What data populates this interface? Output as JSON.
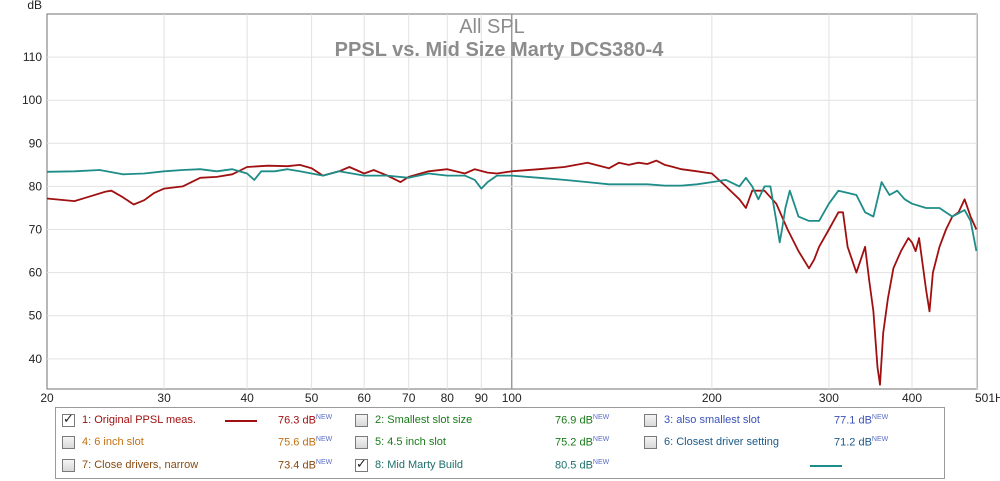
{
  "chart_data": {
    "type": "line",
    "title": "All SPL",
    "subtitle": "PPSL vs. Mid Size Marty DCS380-4",
    "ylabel": "dB",
    "xunit": "Hz",
    "xscale": "log",
    "xlim": [
      20,
      501
    ],
    "ylim": [
      33,
      120
    ],
    "grid": true,
    "x_ticks": [
      20,
      30,
      40,
      50,
      60,
      70,
      80,
      90,
      100,
      200,
      300,
      400
    ],
    "x_tick_labels": [
      "20",
      "30",
      "40",
      "50",
      "60",
      "70",
      "80",
      "90",
      "100",
      "200",
      "300",
      "400",
      "501Hz"
    ],
    "y_ticks": [
      40,
      50,
      60,
      70,
      80,
      90,
      100,
      110
    ],
    "y_top_label": "dB",
    "series": [
      {
        "name": "1: Original PPSL meas.",
        "color": "#a01010",
        "points": [
          [
            20,
            77.2
          ],
          [
            22,
            76.6
          ],
          [
            23,
            77.5
          ],
          [
            24.5,
            78.8
          ],
          [
            25,
            79
          ],
          [
            26,
            77.5
          ],
          [
            27,
            75.8
          ],
          [
            28,
            76.8
          ],
          [
            29,
            78.5
          ],
          [
            30,
            79.5
          ],
          [
            32,
            80
          ],
          [
            34,
            82
          ],
          [
            36,
            82.2
          ],
          [
            38,
            82.8
          ],
          [
            40,
            84.5
          ],
          [
            43,
            84.8
          ],
          [
            46,
            84.7
          ],
          [
            48,
            85
          ],
          [
            50,
            84.2
          ],
          [
            52,
            82.5
          ],
          [
            55,
            83.5
          ],
          [
            57,
            84.5
          ],
          [
            60,
            83
          ],
          [
            62,
            83.8
          ],
          [
            65,
            82.5
          ],
          [
            68,
            81
          ],
          [
            70,
            82.2
          ],
          [
            75,
            83.5
          ],
          [
            80,
            84
          ],
          [
            85,
            83
          ],
          [
            88,
            84
          ],
          [
            92,
            83.2
          ],
          [
            95,
            83
          ],
          [
            100,
            83.5
          ],
          [
            110,
            84
          ],
          [
            120,
            84.5
          ],
          [
            130,
            85.5
          ],
          [
            140,
            84.2
          ],
          [
            145,
            85.5
          ],
          [
            150,
            85
          ],
          [
            155,
            85.5
          ],
          [
            160,
            85.2
          ],
          [
            165,
            86
          ],
          [
            170,
            85
          ],
          [
            175,
            84.5
          ],
          [
            180,
            84
          ],
          [
            190,
            83.5
          ],
          [
            200,
            83
          ],
          [
            210,
            80
          ],
          [
            220,
            77
          ],
          [
            225,
            75
          ],
          [
            230,
            79
          ],
          [
            240,
            79
          ],
          [
            250,
            76
          ],
          [
            260,
            70
          ],
          [
            270,
            65
          ],
          [
            280,
            61
          ],
          [
            285,
            63
          ],
          [
            290,
            66
          ],
          [
            300,
            70
          ],
          [
            310,
            74
          ],
          [
            315,
            74
          ],
          [
            320,
            66
          ],
          [
            330,
            60
          ],
          [
            340,
            66
          ],
          [
            345,
            58
          ],
          [
            350,
            51
          ],
          [
            355,
            38
          ],
          [
            358,
            34
          ],
          [
            362,
            46
          ],
          [
            368,
            54
          ],
          [
            375,
            61
          ],
          [
            385,
            65
          ],
          [
            395,
            68
          ],
          [
            400,
            67
          ],
          [
            405,
            65
          ],
          [
            410,
            68
          ],
          [
            420,
            56
          ],
          [
            425,
            51
          ],
          [
            430,
            60
          ],
          [
            440,
            66
          ],
          [
            450,
            70
          ],
          [
            460,
            73
          ],
          [
            470,
            74
          ],
          [
            480,
            77
          ],
          [
            490,
            73
          ],
          [
            500,
            70
          ]
        ]
      },
      {
        "name": "8: Mid Marty Build",
        "color": "#1e8c88",
        "points": [
          [
            20,
            83.4
          ],
          [
            22,
            83.5
          ],
          [
            24,
            83.8
          ],
          [
            26,
            82.8
          ],
          [
            28,
            83
          ],
          [
            30,
            83.5
          ],
          [
            32,
            83.8
          ],
          [
            34,
            84
          ],
          [
            36,
            83.5
          ],
          [
            38,
            84
          ],
          [
            40,
            83
          ],
          [
            41,
            81.5
          ],
          [
            42,
            83.5
          ],
          [
            44,
            83.5
          ],
          [
            46,
            84
          ],
          [
            48,
            83.5
          ],
          [
            50,
            83
          ],
          [
            52,
            82.5
          ],
          [
            55,
            83.5
          ],
          [
            60,
            82.5
          ],
          [
            65,
            82.5
          ],
          [
            70,
            82
          ],
          [
            75,
            83
          ],
          [
            80,
            82.5
          ],
          [
            85,
            82.5
          ],
          [
            88,
            81.5
          ],
          [
            90,
            79.5
          ],
          [
            92,
            81
          ],
          [
            95,
            82.5
          ],
          [
            100,
            82.5
          ],
          [
            110,
            82
          ],
          [
            120,
            81.5
          ],
          [
            130,
            81
          ],
          [
            140,
            80.5
          ],
          [
            150,
            80.5
          ],
          [
            160,
            80.5
          ],
          [
            170,
            80.2
          ],
          [
            180,
            80.2
          ],
          [
            190,
            80.5
          ],
          [
            200,
            81
          ],
          [
            210,
            81.5
          ],
          [
            220,
            80
          ],
          [
            225,
            82
          ],
          [
            230,
            80
          ],
          [
            235,
            77
          ],
          [
            240,
            80
          ],
          [
            245,
            80
          ],
          [
            250,
            72
          ],
          [
            253,
            67
          ],
          [
            255,
            70
          ],
          [
            258,
            75
          ],
          [
            262,
            79
          ],
          [
            270,
            73
          ],
          [
            280,
            72
          ],
          [
            290,
            72
          ],
          [
            300,
            76
          ],
          [
            310,
            79
          ],
          [
            320,
            78.5
          ],
          [
            330,
            78
          ],
          [
            340,
            74
          ],
          [
            350,
            73
          ],
          [
            360,
            81
          ],
          [
            370,
            78
          ],
          [
            380,
            79
          ],
          [
            390,
            77
          ],
          [
            400,
            76
          ],
          [
            420,
            75
          ],
          [
            440,
            75
          ],
          [
            460,
            73
          ],
          [
            480,
            74.5
          ],
          [
            490,
            72
          ],
          [
            500,
            65
          ]
        ]
      }
    ]
  },
  "legend": {
    "items": [
      {
        "label": "1: Original PPSL meas.",
        "value": "76.3 dB",
        "suffix": "NEW",
        "checked": true,
        "text_color": "#a01010",
        "swatch": "#a01010"
      },
      {
        "label": "2: Smallest slot size",
        "value": "76.9 dB",
        "suffix": "NEW",
        "checked": false,
        "text_color": "#1a7a1a",
        "swatch": ""
      },
      {
        "label": "3: also smallest slot",
        "value": "77.1 dB",
        "suffix": "NEW",
        "checked": false,
        "text_color": "#3a52b8",
        "swatch": ""
      },
      {
        "label": "4: 6 inch slot",
        "value": "75.6 dB",
        "suffix": "NEW",
        "checked": false,
        "text_color": "#c07010",
        "swatch": ""
      },
      {
        "label": "5: 4.5 inch slot",
        "value": "75.2 dB",
        "suffix": "NEW",
        "checked": false,
        "text_color": "#1a7a1a",
        "swatch": ""
      },
      {
        "label": "6: Closest driver setting",
        "value": "71.2 dB",
        "suffix": "NEW",
        "checked": false,
        "text_color": "#1a5a8a",
        "swatch": ""
      },
      {
        "label": "7: Close drivers, narrow",
        "value": "73.4 dB",
        "suffix": "NEW",
        "checked": false,
        "text_color": "#8a4a10",
        "swatch": ""
      },
      {
        "label": "8: Mid Marty Build",
        "value": "80.5 dB",
        "suffix": "NEW",
        "checked": true,
        "text_color": "#1e6e6a",
        "swatch": "#1e8c88"
      }
    ]
  }
}
